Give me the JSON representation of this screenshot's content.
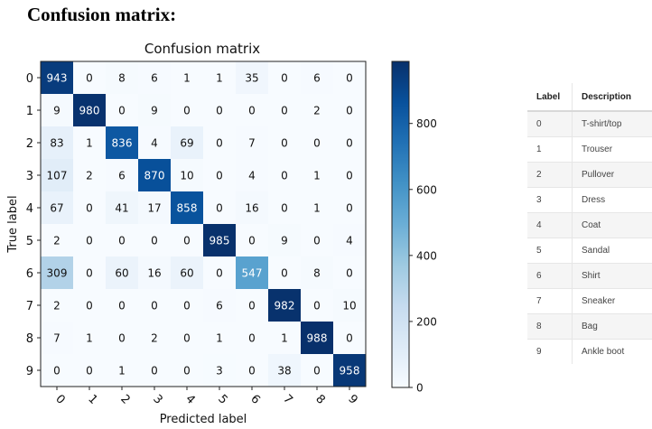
{
  "page": {
    "heading": "Confusion matrix:"
  },
  "chart_data": {
    "type": "heatmap",
    "title": "Confusion matrix",
    "xlabel": "Predicted label",
    "ylabel": "True label",
    "categories": [
      "0",
      "1",
      "2",
      "3",
      "4",
      "5",
      "6",
      "7",
      "8",
      "9"
    ],
    "values": [
      [
        943,
        0,
        8,
        6,
        1,
        1,
        35,
        0,
        6,
        0
      ],
      [
        9,
        980,
        0,
        9,
        0,
        0,
        0,
        0,
        2,
        0
      ],
      [
        83,
        1,
        836,
        4,
        69,
        0,
        7,
        0,
        0,
        0
      ],
      [
        107,
        2,
        6,
        870,
        10,
        0,
        4,
        0,
        1,
        0
      ],
      [
        67,
        0,
        41,
        17,
        858,
        0,
        16,
        0,
        1,
        0
      ],
      [
        2,
        0,
        0,
        0,
        0,
        985,
        0,
        9,
        0,
        4
      ],
      [
        309,
        0,
        60,
        16,
        60,
        0,
        547,
        0,
        8,
        0
      ],
      [
        2,
        0,
        0,
        0,
        0,
        6,
        0,
        982,
        0,
        10
      ],
      [
        7,
        1,
        0,
        2,
        0,
        1,
        0,
        1,
        988,
        0
      ],
      [
        0,
        0,
        1,
        0,
        0,
        3,
        0,
        38,
        0,
        958
      ]
    ],
    "colormap": "Blues",
    "colors": {
      "low": "#f7fbff",
      "high": "#08306b"
    },
    "colorbar": {
      "range": [
        0,
        988
      ],
      "ticks": [
        0,
        200,
        400,
        600,
        800
      ]
    },
    "grid": false
  },
  "label_table": {
    "headers": [
      "Label",
      "Description"
    ],
    "rows": [
      [
        "0",
        "T-shirt/top"
      ],
      [
        "1",
        "Trouser"
      ],
      [
        "2",
        "Pullover"
      ],
      [
        "3",
        "Dress"
      ],
      [
        "4",
        "Coat"
      ],
      [
        "5",
        "Sandal"
      ],
      [
        "6",
        "Shirt"
      ],
      [
        "7",
        "Sneaker"
      ],
      [
        "8",
        "Bag"
      ],
      [
        "9",
        "Ankle boot"
      ]
    ]
  }
}
